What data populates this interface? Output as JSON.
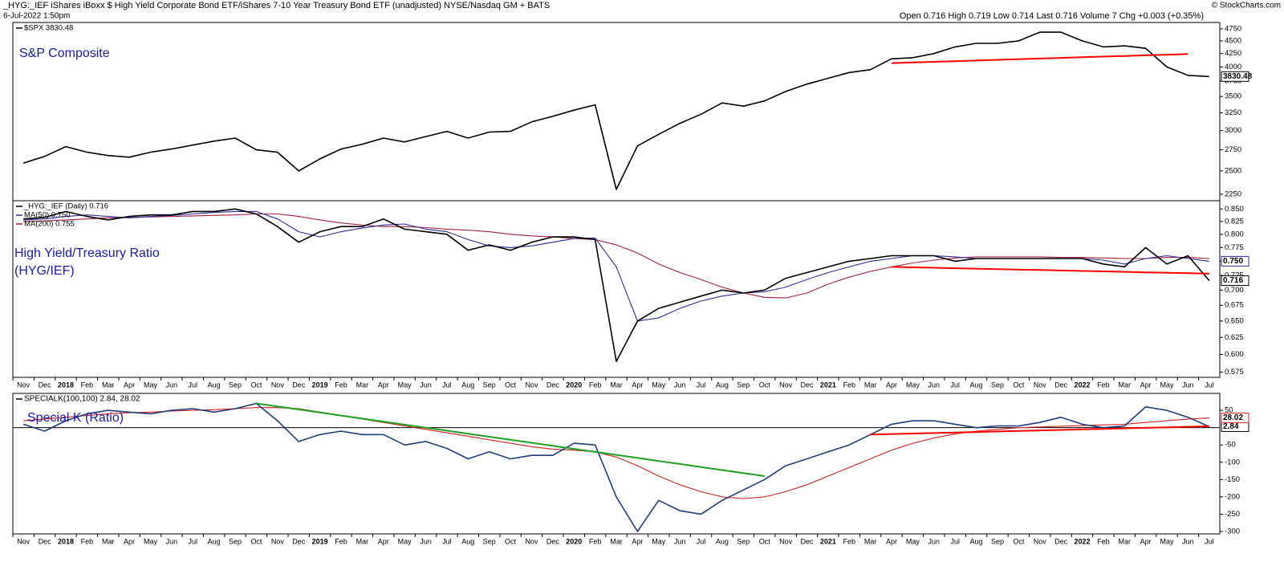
{
  "header": {
    "title": "_HYG:_IEF iShares iBoxx $ High Yield Corporate Bond ETF/iShares 7-10 Year Treasury Bond ETF (unadjusted) NYSE/Nasdaq GM + BATS",
    "date": "6-Jul-2022 1:50pm",
    "quote": "Open 0.716  High 0.719  Low 0.714  Last 0.716  Volume 7  Chg +0.003 (+0.35%)",
    "copyright": "© StockCharts.com"
  },
  "chart_data": [
    {
      "type": "line",
      "log_scale": true,
      "show_x_labels": false,
      "annotations": [
        "S&P Composite"
      ],
      "categories": [
        "Nov",
        "Dec",
        "2018",
        "Feb",
        "Mar",
        "Apr",
        "May",
        "Jun",
        "Jul",
        "Aug",
        "Sep",
        "Oct",
        "Nov",
        "Dec",
        "2019",
        "Feb",
        "Mar",
        "Apr",
        "May",
        "Jun",
        "Jul",
        "Aug",
        "Sep",
        "Oct",
        "Nov",
        "Dec",
        "2020",
        "Feb",
        "Mar",
        "Apr",
        "May",
        "Jun",
        "Jul",
        "Aug",
        "Sep",
        "Oct",
        "Nov",
        "Dec",
        "2021",
        "Feb",
        "Mar",
        "Apr",
        "May",
        "Jun",
        "Jul",
        "Aug",
        "Sep",
        "Oct",
        "Nov",
        "Dec",
        "2022",
        "Feb",
        "Mar",
        "Apr",
        "May",
        "Jun",
        "Jul"
      ],
      "ylim": [
        2185,
        4890
      ],
      "yticks": [
        2250,
        2500,
        2750,
        3000,
        3250,
        3500,
        3750,
        4000,
        4250,
        4500,
        4750
      ],
      "series": [
        {
          "name": "$SPX 3830.48",
          "color": "#000000",
          "last_label": "3830.48",
          "values": [
            2590,
            2670,
            2790,
            2720,
            2680,
            2660,
            2720,
            2760,
            2810,
            2860,
            2900,
            2750,
            2720,
            2500,
            2640,
            2760,
            2820,
            2900,
            2850,
            2920,
            2990,
            2900,
            2980,
            2990,
            3120,
            3200,
            3290,
            3370,
            2300,
            2800,
            2950,
            3100,
            3230,
            3400,
            3350,
            3430,
            3580,
            3700,
            3800,
            3900,
            3950,
            4150,
            4170,
            4250,
            4380,
            4450,
            4450,
            4500,
            4680,
            4680,
            4500,
            4380,
            4400,
            4350,
            4000,
            3850,
            3830.48
          ]
        }
      ],
      "trend_lines": [
        {
          "color": "#ff0000",
          "values": [
            null,
            null,
            null,
            null,
            null,
            null,
            null,
            null,
            null,
            null,
            null,
            null,
            null,
            null,
            null,
            null,
            null,
            null,
            null,
            null,
            null,
            null,
            null,
            null,
            null,
            null,
            null,
            null,
            null,
            null,
            null,
            null,
            null,
            null,
            null,
            null,
            null,
            null,
            null,
            null,
            null,
            4070,
            4082,
            4094,
            4106,
            4118,
            4130,
            4143,
            4155,
            4167,
            4179,
            4191,
            4203,
            4215,
            4228,
            4240,
            null
          ]
        }
      ]
    },
    {
      "type": "line",
      "log_scale": true,
      "show_x_labels": true,
      "annotations": [
        "High Yield/Treasury Ratio",
        "(HYG/IEF)"
      ],
      "categories": [
        "Nov",
        "Dec",
        "2018",
        "Feb",
        "Mar",
        "Apr",
        "May",
        "Jun",
        "Jul",
        "Aug",
        "Sep",
        "Oct",
        "Nov",
        "Dec",
        "2019",
        "Feb",
        "Mar",
        "Apr",
        "May",
        "Jun",
        "Jul",
        "Aug",
        "Sep",
        "Oct",
        "Nov",
        "Dec",
        "2020",
        "Feb",
        "Mar",
        "Apr",
        "May",
        "Jun",
        "Jul",
        "Aug",
        "Sep",
        "Oct",
        "Nov",
        "Dec",
        "2021",
        "Feb",
        "Mar",
        "Apr",
        "May",
        "Jun",
        "Jul",
        "Aug",
        "Sep",
        "Oct",
        "Nov",
        "Dec",
        "2022",
        "Feb",
        "Mar",
        "Apr",
        "May",
        "Jun",
        "Jul"
      ],
      "ylim": [
        0.568,
        0.867
      ],
      "yticks": [
        {
          "value": 0.575,
          "label": "0.575"
        },
        {
          "value": 0.6,
          "label": "0.600"
        },
        {
          "value": 0.625,
          "label": "0.625"
        },
        {
          "value": 0.65,
          "label": "0.650"
        },
        {
          "value": 0.675,
          "label": "0.675"
        },
        {
          "value": 0.7,
          "label": "0.700"
        },
        {
          "value": 0.725,
          "label": "0.725"
        },
        {
          "value": 0.75,
          "label": "0.750"
        },
        {
          "value": 0.775,
          "label": "0.775"
        },
        {
          "value": 0.8,
          "label": "0.800"
        },
        {
          "value": 0.825,
          "label": "0.825"
        },
        {
          "value": 0.85,
          "label": "0.850"
        }
      ],
      "series": [
        {
          "name": "_HYG:_IEF (Daily) 0.716",
          "color": "#000000",
          "last_label": "0.716",
          "values": [
            0.83,
            0.833,
            0.845,
            0.835,
            0.828,
            0.835,
            0.838,
            0.838,
            0.845,
            0.845,
            0.85,
            0.84,
            0.815,
            0.785,
            0.805,
            0.815,
            0.815,
            0.83,
            0.81,
            0.805,
            0.8,
            0.77,
            0.78,
            0.77,
            0.785,
            0.795,
            0.795,
            0.79,
            0.59,
            0.65,
            0.67,
            0.68,
            0.69,
            0.7,
            0.695,
            0.7,
            0.72,
            0.73,
            0.74,
            0.75,
            0.755,
            0.76,
            0.76,
            0.76,
            0.75,
            0.755,
            0.755,
            0.755,
            0.755,
            0.755,
            0.755,
            0.745,
            0.74,
            0.775,
            0.745,
            0.76,
            0.716
          ]
        },
        {
          "name": "MA(50) 0.750",
          "color": "#2b2b9e",
          "last_label": "0.750",
          "values": [
            0.828,
            0.83,
            0.835,
            0.838,
            0.835,
            0.832,
            0.835,
            0.837,
            0.84,
            0.843,
            0.845,
            0.845,
            0.83,
            0.805,
            0.795,
            0.805,
            0.812,
            0.818,
            0.82,
            0.81,
            0.805,
            0.79,
            0.778,
            0.775,
            0.778,
            0.785,
            0.792,
            0.793,
            0.74,
            0.65,
            0.655,
            0.67,
            0.682,
            0.69,
            0.695,
            0.697,
            0.705,
            0.718,
            0.73,
            0.74,
            0.75,
            0.755,
            0.76,
            0.76,
            0.758,
            0.755,
            0.755,
            0.755,
            0.755,
            0.755,
            0.755,
            0.752,
            0.745,
            0.755,
            0.76,
            0.755,
            0.75
          ]
        },
        {
          "name": "MA(200) 0.755",
          "color": "#a3203e",
          "values": [
            0.825,
            0.826,
            0.828,
            0.83,
            0.832,
            0.833,
            0.834,
            0.835,
            0.836,
            0.837,
            0.838,
            0.84,
            0.84,
            0.835,
            0.828,
            0.822,
            0.818,
            0.815,
            0.815,
            0.813,
            0.81,
            0.808,
            0.805,
            0.8,
            0.797,
            0.795,
            0.792,
            0.79,
            0.78,
            0.765,
            0.745,
            0.73,
            0.718,
            0.705,
            0.695,
            0.688,
            0.687,
            0.695,
            0.71,
            0.722,
            0.732,
            0.74,
            0.747,
            0.752,
            0.756,
            0.758,
            0.758,
            0.758,
            0.758,
            0.757,
            0.757,
            0.756,
            0.755,
            0.755,
            0.757,
            0.757,
            0.755
          ]
        }
      ],
      "trend_lines": [
        {
          "color": "#ff0000",
          "values": [
            null,
            null,
            null,
            null,
            null,
            null,
            null,
            null,
            null,
            null,
            null,
            null,
            null,
            null,
            null,
            null,
            null,
            null,
            null,
            null,
            null,
            null,
            null,
            null,
            null,
            null,
            null,
            null,
            null,
            null,
            null,
            null,
            null,
            null,
            null,
            null,
            null,
            null,
            null,
            null,
            null,
            0.74,
            0.7392,
            0.7384,
            0.7376,
            0.7368,
            0.736,
            0.7352,
            0.7344,
            0.7336,
            0.7328,
            0.732,
            0.7312,
            0.7304,
            0.7296,
            0.7288,
            0.728
          ]
        }
      ]
    },
    {
      "type": "line",
      "log_scale": false,
      "show_x_labels": true,
      "hline": 0,
      "legend_text": "SPECIALK(100,100) 2.84, 28.02",
      "annotations": [
        "Special K (Ratio)"
      ],
      "categories": [
        "Nov",
        "Dec",
        "2018",
        "Feb",
        "Mar",
        "Apr",
        "May",
        "Jun",
        "Jul",
        "Aug",
        "Sep",
        "Oct",
        "Nov",
        "Dec",
        "2019",
        "Feb",
        "Mar",
        "Apr",
        "May",
        "Jun",
        "Jul",
        "Aug",
        "Sep",
        "Oct",
        "Nov",
        "Dec",
        "2020",
        "Feb",
        "Mar",
        "Apr",
        "May",
        "Jun",
        "Jul",
        "Aug",
        "Sep",
        "Oct",
        "Nov",
        "Dec",
        "2021",
        "Feb",
        "Mar",
        "Apr",
        "May",
        "Jun",
        "Jul",
        "Aug",
        "Sep",
        "Oct",
        "Nov",
        "Dec",
        "2022",
        "Feb",
        "Mar",
        "Apr",
        "May",
        "Jun",
        "Jul"
      ],
      "ylim": [
        -307,
        99
      ],
      "yticks": [
        -300,
        -250,
        -200,
        -150,
        -100,
        -50,
        50
      ],
      "series": [
        {
          "color": "#1f3d7a",
          "last_label": "2.84",
          "values": [
            10,
            -10,
            20,
            40,
            50,
            45,
            40,
            50,
            55,
            45,
            55,
            70,
            20,
            -40,
            -20,
            -10,
            -20,
            -20,
            -50,
            -40,
            -60,
            -90,
            -70,
            -90,
            -80,
            -80,
            -45,
            -50,
            -200,
            -300,
            -210,
            -240,
            -250,
            -210,
            -180,
            -150,
            -110,
            -90,
            -70,
            -50,
            -20,
            10,
            20,
            20,
            10,
            0,
            5,
            5,
            15,
            30,
            10,
            0,
            5,
            60,
            50,
            30,
            2.84
          ]
        },
        {
          "color": "#d42020",
          "last_label": "28.02",
          "values": [
            20,
            25,
            30,
            35,
            40,
            43,
            45,
            48,
            50,
            52,
            55,
            58,
            58,
            55,
            45,
            35,
            25,
            15,
            5,
            -5,
            -15,
            -25,
            -35,
            -45,
            -55,
            -62,
            -65,
            -70,
            -85,
            -110,
            -140,
            -165,
            -185,
            -200,
            -205,
            -200,
            -185,
            -165,
            -140,
            -115,
            -90,
            -65,
            -45,
            -30,
            -18,
            -10,
            -5,
            0,
            2,
            4,
            6,
            8,
            10,
            15,
            20,
            25,
            28.02
          ]
        }
      ],
      "trend_lines": [
        {
          "color": "#22a022",
          "values": [
            null,
            null,
            null,
            null,
            null,
            null,
            null,
            null,
            null,
            null,
            null,
            70,
            61.25,
            52.5,
            43.75,
            35,
            26.25,
            17.5,
            8.75,
            0,
            -8.75,
            -17.5,
            -26.25,
            -35,
            -43.75,
            -52.5,
            -61.25,
            -70,
            -78.75,
            -87.5,
            -96.25,
            -105,
            -113.75,
            -122.5,
            -131.25,
            -140,
            null,
            null,
            null,
            null,
            null,
            null,
            null,
            null,
            null,
            null,
            null,
            null,
            null,
            null,
            null,
            null,
            null,
            null,
            null,
            null,
            null
          ]
        },
        {
          "color": "#ff0000",
          "values": [
            null,
            null,
            null,
            null,
            null,
            null,
            null,
            null,
            null,
            null,
            null,
            null,
            null,
            null,
            null,
            null,
            null,
            null,
            null,
            null,
            null,
            null,
            null,
            null,
            null,
            null,
            null,
            null,
            null,
            null,
            null,
            null,
            null,
            null,
            null,
            null,
            null,
            null,
            null,
            null,
            -20,
            -18.5,
            -17,
            -15.5,
            -14,
            -12.5,
            -11,
            -9.5,
            -8,
            -6.5,
            -5,
            -3.5,
            -2,
            -0.5,
            1,
            2.5,
            4
          ]
        }
      ]
    }
  ]
}
